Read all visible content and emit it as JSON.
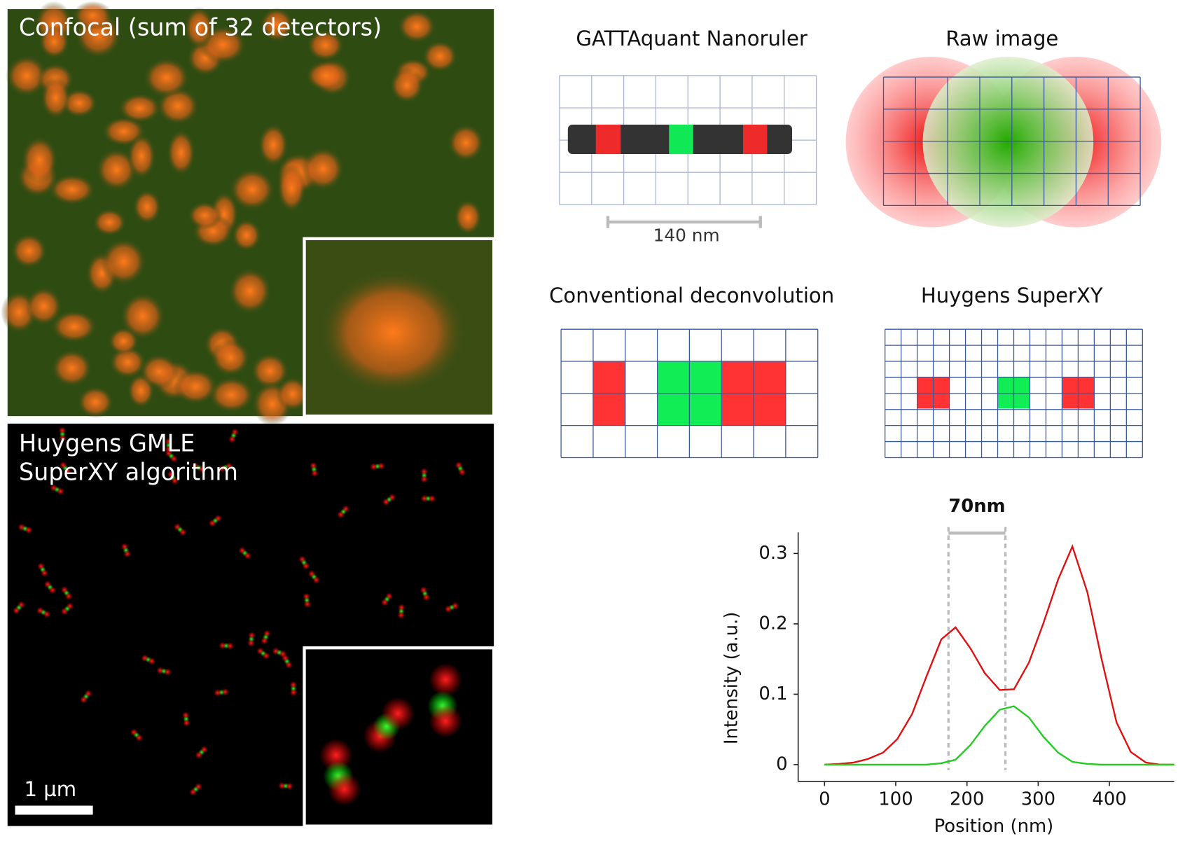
{
  "panels": {
    "confocal": {
      "title": "Confocal (sum of 32 detectors)"
    },
    "superxy_image": {
      "title": [
        "Huygens GMLE",
        "SuperXY algorithm"
      ],
      "scale_bar": "1 µm"
    },
    "nanoruler": {
      "title": "GATTAquant Nanoruler",
      "scale": "140 nm"
    },
    "raw": {
      "title": "Raw image"
    },
    "conventional": {
      "title": "Conventional deconvolution"
    },
    "huygens": {
      "title": "Huygens SuperXY"
    }
  },
  "chart_data": {
    "type": "line",
    "x_label": "Position (nm)",
    "y_label": "Intensity (a.u.)",
    "x": [
      0,
      20,
      41,
      61,
      82,
      102,
      123,
      143,
      164,
      184,
      205,
      225,
      246,
      266,
      287,
      307,
      328,
      348,
      369,
      389,
      410,
      430,
      451,
      471,
      491
    ],
    "series": [
      {
        "color": "#e01010",
        "values": [
          0,
          0.001,
          0.003,
          0.008,
          0.017,
          0.036,
          0.072,
          0.125,
          0.178,
          0.195,
          0.165,
          0.13,
          0.106,
          0.107,
          0.145,
          0.2,
          0.263,
          0.31,
          0.245,
          0.15,
          0.06,
          0.018,
          0.003,
          0,
          0
        ]
      },
      {
        "color": "#22cc22",
        "values": [
          0,
          0,
          0,
          0,
          0,
          0,
          0,
          0,
          0.002,
          0.007,
          0.028,
          0.055,
          0.078,
          0.083,
          0.067,
          0.04,
          0.017,
          0.004,
          0.001,
          0,
          0,
          0,
          0,
          0,
          0
        ]
      }
    ],
    "xlim": [
      -37,
      491
    ],
    "ylim": [
      -0.024,
      0.33
    ],
    "xticks": [
      0,
      100,
      200,
      300,
      400
    ],
    "yticks": [
      0,
      0.1,
      0.2,
      0.3
    ],
    "reference_lines": [
      174,
      254
    ],
    "annotation": "70nm"
  }
}
